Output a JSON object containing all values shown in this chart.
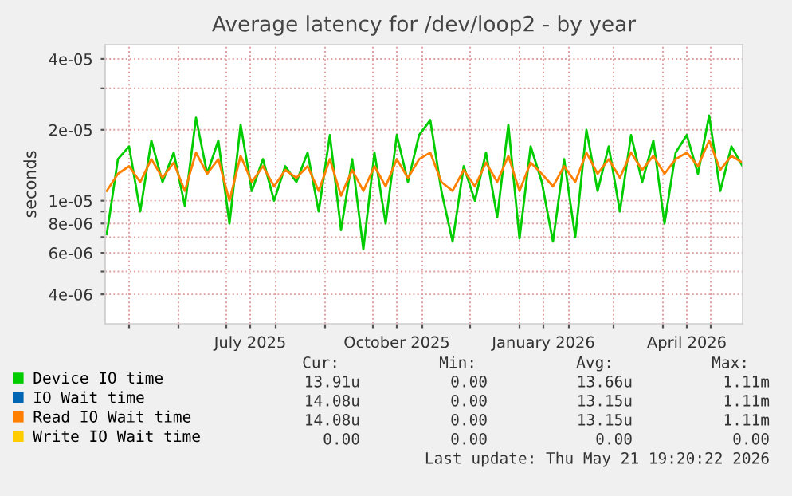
{
  "chart_data": {
    "type": "line",
    "title": "Average latency for /dev/loop2 - by year",
    "ylabel": "seconds",
    "x": [
      "2025-04-17",
      "2025-04-24",
      "2025-05-01",
      "2025-05-08",
      "2025-05-15",
      "2025-05-22",
      "2025-05-29",
      "2025-06-05",
      "2025-06-12",
      "2025-06-19",
      "2025-06-26",
      "2025-07-03",
      "2025-07-10",
      "2025-07-17",
      "2025-07-24",
      "2025-07-31",
      "2025-08-07",
      "2025-08-14",
      "2025-08-21",
      "2025-08-28",
      "2025-09-04",
      "2025-09-11",
      "2025-09-18",
      "2025-09-25",
      "2025-10-02",
      "2025-10-09",
      "2025-10-16",
      "2025-10-23",
      "2025-10-30",
      "2025-11-06",
      "2025-11-13",
      "2025-11-20",
      "2025-11-27",
      "2025-12-04",
      "2025-12-11",
      "2025-12-18",
      "2025-12-25",
      "2026-01-01",
      "2026-01-08",
      "2026-01-15",
      "2026-01-22",
      "2026-01-29",
      "2026-02-05",
      "2026-02-12",
      "2026-02-19",
      "2026-02-26",
      "2026-03-05",
      "2026-03-12",
      "2026-03-19",
      "2026-03-26",
      "2026-04-02",
      "2026-04-09",
      "2026-04-16",
      "2026-04-23",
      "2026-04-30",
      "2026-05-07",
      "2026-05-14",
      "2026-05-21"
    ],
    "series": [
      {
        "name": "Device IO time",
        "color": "#00cc00",
        "values": [
          7.2e-06,
          1.5e-05,
          1.7e-05,
          9e-06,
          1.8e-05,
          1.2e-05,
          1.6e-05,
          9.5e-06,
          2.25e-05,
          1.3e-05,
          1.8e-05,
          8e-06,
          2.1e-05,
          1.1e-05,
          1.5e-05,
          1e-05,
          1.4e-05,
          1.2e-05,
          1.6e-05,
          9e-06,
          1.9e-05,
          7.5e-06,
          1.5e-05,
          6.2e-06,
          1.6e-05,
          8e-06,
          1.9e-05,
          1.2e-05,
          1.9e-05,
          2.2e-05,
          1.1e-05,
          6.7e-06,
          1.4e-05,
          1e-05,
          1.6e-05,
          8.5e-06,
          2.1e-05,
          6.9e-06,
          1.7e-05,
          1.2e-05,
          6.7e-06,
          1.5e-05,
          7e-06,
          2e-05,
          1.1e-05,
          1.7e-05,
          9e-06,
          1.9e-05,
          1.2e-05,
          1.8e-05,
          8e-06,
          1.6e-05,
          1.9e-05,
          1.3e-05,
          2.3e-05,
          1.1e-05,
          1.7e-05,
          1.4e-05
        ]
      },
      {
        "name": "IO Wait time",
        "color": "#0066b3",
        "values": [
          null,
          null,
          null,
          null,
          null,
          null,
          null,
          null,
          null,
          null,
          null,
          null,
          null,
          null,
          null,
          null,
          null,
          null,
          null,
          null,
          null,
          null,
          null,
          null,
          null,
          null,
          null,
          null,
          null,
          null,
          null,
          null,
          null,
          null,
          null,
          null,
          null,
          null,
          null,
          null,
          null,
          null,
          null,
          null,
          null,
          null,
          null,
          null,
          null,
          null,
          null,
          null,
          null,
          null,
          null,
          null,
          null,
          null
        ]
      },
      {
        "name": "Read IO Wait time",
        "color": "#ff8000",
        "values": [
          1.1e-05,
          1.3e-05,
          1.4e-05,
          1.2e-05,
          1.5e-05,
          1.25e-05,
          1.45e-05,
          1.1e-05,
          1.6e-05,
          1.3e-05,
          1.5e-05,
          1e-05,
          1.55e-05,
          1.2e-05,
          1.4e-05,
          1.15e-05,
          1.35e-05,
          1.25e-05,
          1.4e-05,
          1.1e-05,
          1.5e-05,
          1.05e-05,
          1.35e-05,
          1.1e-05,
          1.4e-05,
          1.15e-05,
          1.5e-05,
          1.25e-05,
          1.5e-05,
          1.6e-05,
          1.2e-05,
          1.1e-05,
          1.35e-05,
          1.15e-05,
          1.45e-05,
          1.2e-05,
          1.55e-05,
          1.1e-05,
          1.45e-05,
          1.3e-05,
          1.15e-05,
          1.4e-05,
          1.2e-05,
          1.6e-05,
          1.3e-05,
          1.5e-05,
          1.25e-05,
          1.6e-05,
          1.35e-05,
          1.55e-05,
          1.3e-05,
          1.5e-05,
          1.6e-05,
          1.4e-05,
          1.8e-05,
          1.35e-05,
          1.55e-05,
          1.45e-05
        ]
      },
      {
        "name": "Write IO Wait time",
        "color": "#ffcc00",
        "values": [
          null,
          null,
          null,
          null,
          null,
          null,
          null,
          null,
          null,
          null,
          null,
          null,
          null,
          null,
          null,
          null,
          null,
          null,
          null,
          null,
          null,
          null,
          null,
          null,
          null,
          null,
          null,
          null,
          null,
          null,
          null,
          null,
          null,
          null,
          null,
          null,
          null,
          null,
          null,
          null,
          null,
          null,
          null,
          null,
          null,
          null,
          null,
          null,
          null,
          null,
          null,
          null,
          null,
          null,
          null,
          null,
          null,
          null
        ]
      }
    ],
    "log": "y",
    "xlim": [
      "2025-04-16",
      "2026-05-21"
    ],
    "xticks": [
      {
        "value": "2025-05-01",
        "label": null
      },
      {
        "value": "2025-06-01",
        "label": null
      },
      {
        "value": "2025-07-01",
        "label": null
      },
      {
        "value": "2025-07-16",
        "label": "July 2025"
      },
      {
        "value": "2025-08-01",
        "label": null
      },
      {
        "value": "2025-09-01",
        "label": null
      },
      {
        "value": "2025-10-01",
        "label": null
      },
      {
        "value": "2025-10-16",
        "label": "October 2025"
      },
      {
        "value": "2025-11-01",
        "label": null
      },
      {
        "value": "2025-12-01",
        "label": null
      },
      {
        "value": "2026-01-01",
        "label": null
      },
      {
        "value": "2026-01-16",
        "label": "January 2026"
      },
      {
        "value": "2026-02-01",
        "label": null
      },
      {
        "value": "2026-03-01",
        "label": null
      },
      {
        "value": "2026-04-01",
        "label": null
      },
      {
        "value": "2026-04-16",
        "label": "April 2026"
      },
      {
        "value": "2026-05-01",
        "label": null
      }
    ],
    "ylim": [
      3e-06,
      4.6e-05
    ],
    "yticks": [
      {
        "value": 4e-06,
        "label": "4e-06"
      },
      {
        "value": 5e-06,
        "label": null
      },
      {
        "value": 6e-06,
        "label": "6e-06"
      },
      {
        "value": 7e-06,
        "label": null
      },
      {
        "value": 8e-06,
        "label": "8e-06"
      },
      {
        "value": 9e-06,
        "label": null
      },
      {
        "value": 1e-05,
        "label": "1e-05"
      },
      {
        "value": 2e-05,
        "label": "2e-05"
      },
      {
        "value": 3e-05,
        "label": null
      },
      {
        "value": 4e-05,
        "label": "4e-05"
      }
    ],
    "grid": true,
    "legend": "bottom",
    "line_style": "solid",
    "marker": "none",
    "annotations": [
      "Cur:",
      "Min:",
      "Avg:",
      "Max:",
      "13.91u",
      "0.00",
      "13.66u",
      "1.11m",
      "14.08u",
      "0.00",
      "13.15u",
      "1.11m",
      "14.08u",
      "0.00",
      "13.15u",
      "1.11m",
      "0.00",
      "0.00",
      "0.00",
      "0.00",
      "Last update: Thu May 21 19:20:22 2026"
    ]
  }
}
